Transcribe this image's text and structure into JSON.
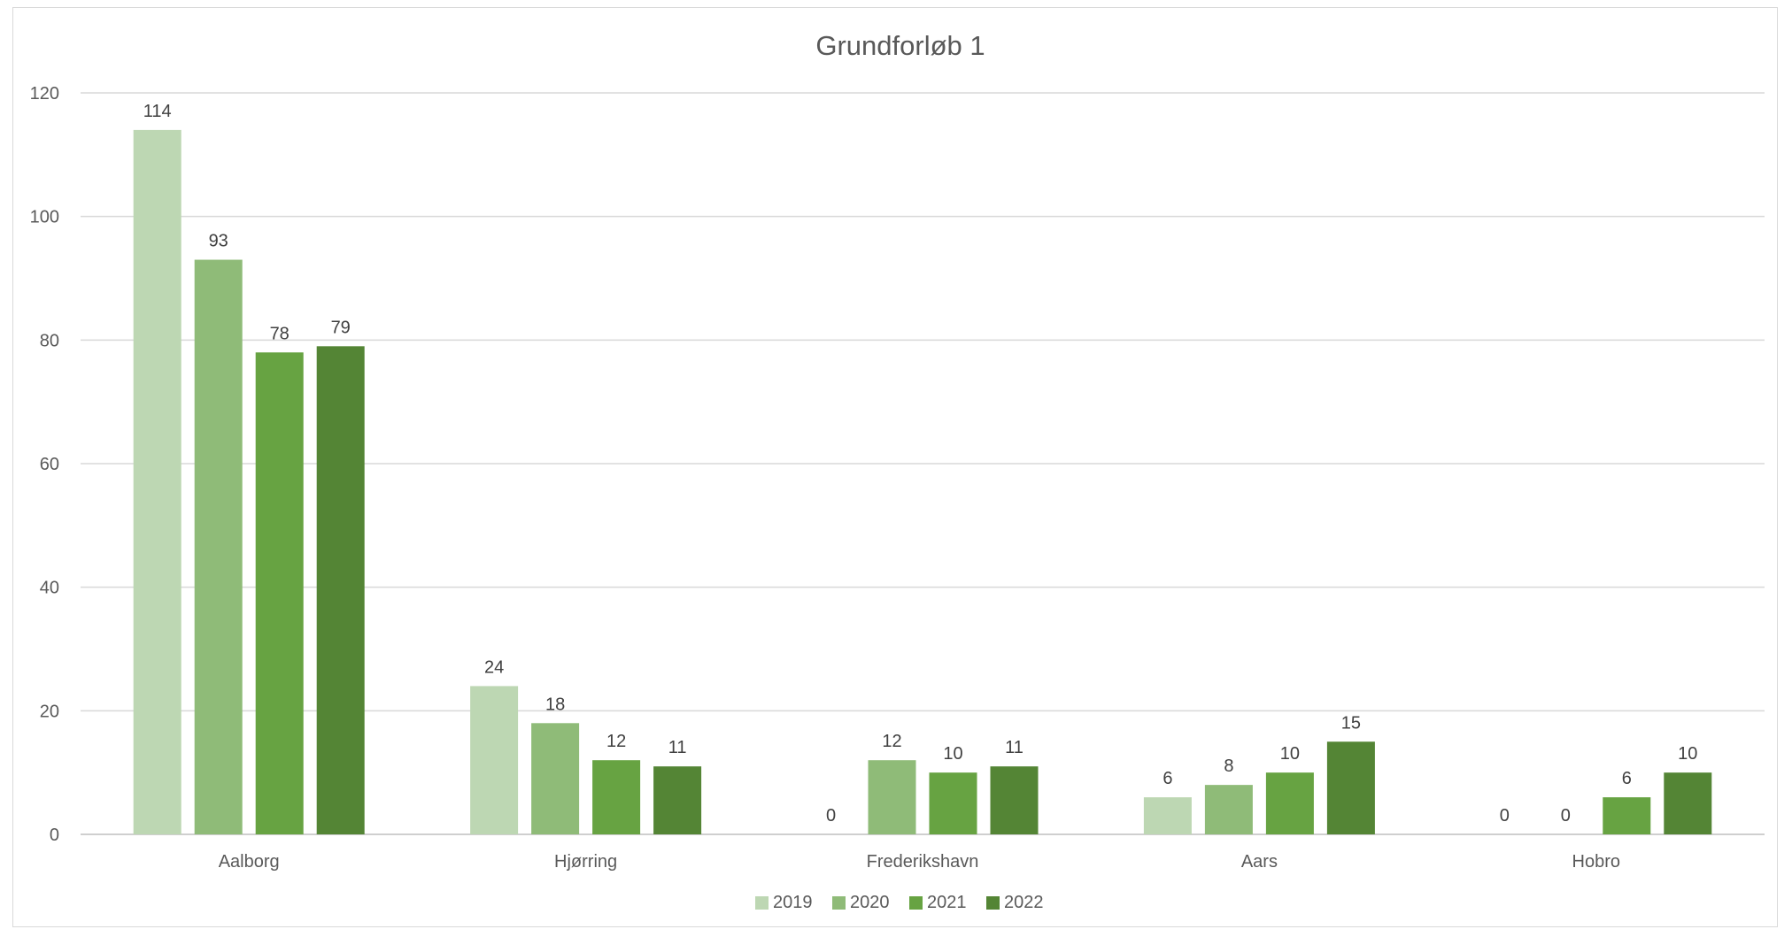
{
  "chart_data": {
    "type": "bar",
    "title": "Grundforløb 1",
    "xlabel": "",
    "ylabel": "",
    "categories": [
      "Aalborg",
      "Hjørring",
      "Frederikshavn",
      "Aars",
      "Hobro"
    ],
    "series": [
      {
        "name": "2019",
        "color": "#bdd7b3",
        "values": [
          114,
          24,
          0,
          6,
          0
        ]
      },
      {
        "name": "2020",
        "color": "#8fbb78",
        "values": [
          93,
          18,
          12,
          8,
          0
        ]
      },
      {
        "name": "2021",
        "color": "#67a342",
        "values": [
          78,
          12,
          10,
          10,
          6
        ]
      },
      {
        "name": "2022",
        "color": "#548535",
        "values": [
          79,
          11,
          11,
          15,
          10
        ]
      }
    ],
    "ylim": [
      0,
      120
    ],
    "yticks": [
      0,
      20,
      40,
      60,
      80,
      100,
      120
    ],
    "grid": true,
    "legend": "bottom",
    "data_labels": true
  }
}
